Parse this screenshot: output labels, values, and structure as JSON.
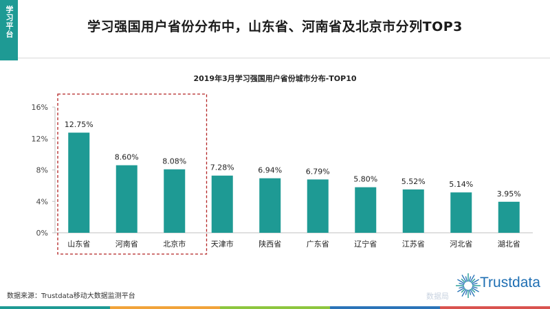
{
  "side_tab": {
    "label": "学习平台"
  },
  "headline": "学习强国用户省份分布中，山东省、河南省及北京市分列TOP3",
  "source": "数据来源：Trustdata移动大数据监测平台",
  "watermark": "数据局",
  "brand": {
    "name": "Trustdata",
    "color": "#1f6fb3"
  },
  "colors": {
    "accent": "#1e9a94",
    "bar": "#1e9a94",
    "highlight_box": "#b22222"
  },
  "chart_data": {
    "type": "bar",
    "title": "2019年3月学习强国用户省份城市分布-TOP10",
    "categories": [
      "山东省",
      "河南省",
      "北京市",
      "天津市",
      "陕西省",
      "广东省",
      "辽宁省",
      "江苏省",
      "河北省",
      "湖北省"
    ],
    "values": [
      12.75,
      8.6,
      8.08,
      7.28,
      6.94,
      6.79,
      5.8,
      5.52,
      5.14,
      3.95
    ],
    "value_labels": [
      "12.75%",
      "8.60%",
      "8.08%",
      "7.28%",
      "6.94%",
      "6.79%",
      "5.80%",
      "5.52%",
      "5.14%",
      "3.95%"
    ],
    "ylim": [
      0,
      16
    ],
    "yticks": [
      0,
      4,
      8,
      12,
      16
    ],
    "ytick_labels": [
      "0%",
      "4%",
      "8%",
      "12%",
      "16%"
    ],
    "xlabel": "",
    "ylabel": "",
    "grid": false,
    "highlighted_categories": [
      "山东省",
      "河南省",
      "北京市"
    ]
  },
  "bottom_stripes": [
    "#1e9a94",
    "#f1a33a",
    "#8dc63f",
    "#2b74b8",
    "#d9534f"
  ]
}
